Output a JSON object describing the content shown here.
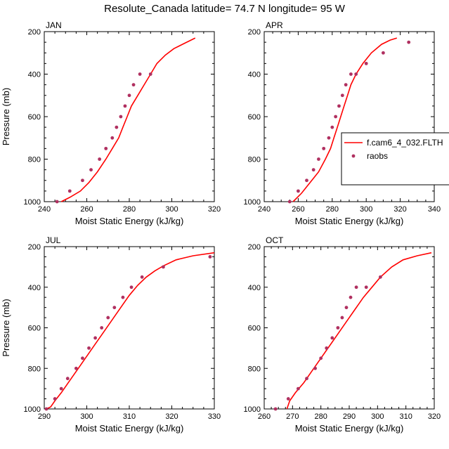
{
  "title": "Resolute_Canada  latitude= 74.7 N longitude= 95 W",
  "colors": {
    "model": "#ff0000",
    "obs": "#b03060",
    "axis": "#000000"
  },
  "legend": {
    "model_label": "f.cam6_4_032.FLTH",
    "obs_label": "raobs"
  },
  "chart_data": [
    {
      "type": "line",
      "panel": "JAN",
      "xlabel": "Moist Static Energy (kJ/kg)",
      "ylabel": "Pressure (mb)",
      "xlim": [
        240,
        320
      ],
      "xticks": [
        240,
        260,
        280,
        300,
        320
      ],
      "ylim": [
        1000,
        200
      ],
      "yticks": [
        200,
        400,
        600,
        800,
        1000
      ],
      "model": {
        "x": [
          248,
          252,
          257,
          261,
          265,
          269,
          272,
          275,
          277,
          279,
          281,
          284,
          287,
          290,
          293,
          297,
          301,
          306,
          311
        ],
        "y": [
          1000,
          980,
          950,
          910,
          860,
          800,
          750,
          700,
          650,
          600,
          550,
          500,
          450,
          400,
          350,
          310,
          280,
          255,
          230
        ]
      },
      "raobs": {
        "x": [
          246,
          252,
          258,
          262,
          266,
          269,
          272,
          274,
          276,
          278,
          280,
          282,
          285,
          290
        ],
        "y": [
          1000,
          950,
          900,
          850,
          800,
          750,
          700,
          650,
          600,
          550,
          500,
          450,
          400,
          400
        ]
      }
    },
    {
      "type": "line",
      "panel": "APR",
      "xlabel": "Moist Static Energy (kJ/kg)",
      "ylabel": "",
      "xlim": [
        240,
        340
      ],
      "xticks": [
        240,
        260,
        280,
        300,
        320,
        340
      ],
      "ylim": [
        1000,
        200
      ],
      "yticks": [
        200,
        400,
        600,
        800,
        1000
      ],
      "model": {
        "x": [
          257,
          262,
          267,
          272,
          276,
          279,
          281,
          283,
          285,
          287,
          289,
          291,
          294,
          298,
          303,
          309,
          314,
          318
        ],
        "y": [
          1000,
          960,
          910,
          860,
          800,
          750,
          700,
          650,
          600,
          550,
          500,
          450,
          400,
          350,
          300,
          260,
          240,
          230
        ]
      },
      "raobs": {
        "x": [
          255,
          260,
          265,
          269,
          272,
          275,
          278,
          280,
          282,
          284,
          286,
          288,
          291,
          294,
          300,
          310,
          325
        ],
        "y": [
          1000,
          950,
          900,
          850,
          800,
          750,
          700,
          650,
          600,
          550,
          500,
          450,
          400,
          400,
          350,
          300,
          250
        ]
      }
    },
    {
      "type": "line",
      "panel": "JUL",
      "xlabel": "Moist Static Energy (kJ/kg)",
      "ylabel": "Pressure (mb)",
      "xlim": [
        290,
        330
      ],
      "xticks": [
        290,
        300,
        310,
        320,
        330
      ],
      "ylim": [
        1000,
        200
      ],
      "yticks": [
        200,
        400,
        600,
        800,
        1000
      ],
      "model": {
        "x": [
          290.5,
          291.5,
          292.5,
          294,
          296,
          298,
          300,
          302,
          304,
          306,
          308,
          310,
          312,
          314,
          316,
          318,
          321,
          325,
          330
        ],
        "y": [
          1000,
          990,
          960,
          920,
          860,
          800,
          740,
          680,
          620,
          560,
          500,
          440,
          390,
          350,
          320,
          295,
          265,
          245,
          230
        ]
      },
      "raobs": {
        "x": [
          290.5,
          292.5,
          294,
          295.5,
          297.5,
          299,
          300.5,
          302,
          303.5,
          305,
          306.5,
          308.5,
          310.5,
          313,
          318,
          329
        ],
        "y": [
          1000,
          950,
          900,
          850,
          800,
          750,
          700,
          650,
          600,
          550,
          500,
          450,
          400,
          350,
          300,
          250
        ]
      }
    },
    {
      "type": "line",
      "panel": "OCT",
      "xlabel": "Moist Static Energy (kJ/kg)",
      "ylabel": "",
      "xlim": [
        260,
        320
      ],
      "xticks": [
        260,
        270,
        280,
        290,
        300,
        310,
        320
      ],
      "ylim": [
        1000,
        200
      ],
      "yticks": [
        200,
        400,
        600,
        800,
        1000
      ],
      "model": {
        "x": [
          268,
          269,
          271,
          274,
          277,
          280,
          283,
          286,
          289,
          292,
          295,
          298,
          301,
          305,
          309,
          314,
          319
        ],
        "y": [
          1000,
          960,
          920,
          870,
          810,
          750,
          690,
          630,
          570,
          510,
          450,
          400,
          350,
          300,
          265,
          245,
          230
        ]
      },
      "raobs": {
        "x": [
          264,
          268.5,
          272,
          275,
          278,
          280,
          282,
          284,
          286,
          287.5,
          289,
          290.5,
          292.5,
          296,
          301
        ],
        "y": [
          1000,
          950,
          900,
          850,
          800,
          750,
          700,
          650,
          600,
          550,
          500,
          450,
          400,
          400,
          350
        ]
      }
    }
  ]
}
